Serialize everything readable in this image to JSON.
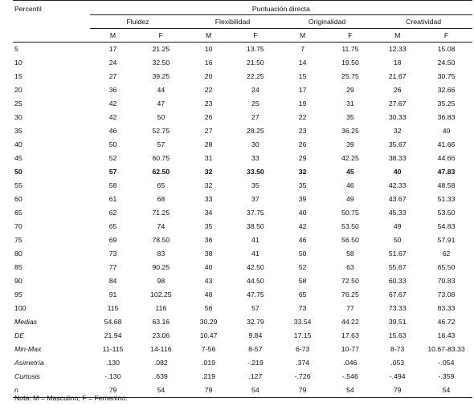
{
  "header": {
    "percentil": "Percentil",
    "puntuacion": "Puntuación directa",
    "groups": [
      "Fluidez",
      "Flexibilidad",
      "Originalidad",
      "Creatividad"
    ],
    "sub": [
      "M",
      "F",
      "M",
      "F",
      "M",
      "F",
      "M",
      "F"
    ]
  },
  "rows": [
    [
      "5",
      "17",
      "21.25",
      "10",
      "13.75",
      "7",
      "11.75",
      "12.33",
      "15.08"
    ],
    [
      "10",
      "24",
      "32.50",
      "16",
      "21.50",
      "14",
      "19.50",
      "18",
      "24.50"
    ],
    [
      "15",
      "27",
      "39.25",
      "20",
      "22.25",
      "15",
      "25.75",
      "21.67",
      "30.75"
    ],
    [
      "20",
      "36",
      "44",
      "22",
      "24",
      "17",
      "29",
      "26",
      "32.66"
    ],
    [
      "25",
      "42",
      "47",
      "23",
      "25",
      "19",
      "31",
      "27.67",
      "35.25"
    ],
    [
      "30",
      "42",
      "50",
      "26",
      "27",
      "22",
      "35",
      "30.33",
      "36.83"
    ],
    [
      "35",
      "46",
      "52.75",
      "27",
      "28.25",
      "23",
      "36.25",
      "32",
      "40"
    ],
    [
      "40",
      "50",
      "57",
      "28",
      "30",
      "26",
      "39",
      "35.67",
      "41.66"
    ],
    [
      "45",
      "52",
      "60.75",
      "31",
      "33",
      "29",
      "42.25",
      "38.33",
      "44.66"
    ],
    [
      "50",
      "57",
      "62.50",
      "32",
      "33.50",
      "32",
      "45",
      "40",
      "47.83"
    ],
    [
      "55",
      "58",
      "65",
      "32",
      "35",
      "35",
      "46",
      "42.33",
      "48.58"
    ],
    [
      "60",
      "61",
      "68",
      "33",
      "37",
      "39",
      "49",
      "43.67",
      "51.33"
    ],
    [
      "65",
      "62",
      "71.25",
      "34",
      "37.75",
      "40",
      "50.75",
      "45.33",
      "53.50"
    ],
    [
      "70",
      "65",
      "74",
      "35",
      "38.50",
      "42",
      "53.50",
      "49",
      "54.83"
    ],
    [
      "75",
      "69",
      "78.50",
      "36",
      "41",
      "46",
      "56.50",
      "50",
      "57.91"
    ],
    [
      "80",
      "73",
      "83",
      "38",
      "41",
      "50",
      "58",
      "51.67",
      "62"
    ],
    [
      "85",
      "77",
      "90.25",
      "40",
      "42.50",
      "52",
      "63",
      "55.67",
      "65.50"
    ],
    [
      "90",
      "84",
      "98",
      "43",
      "44.50",
      "58",
      "72.50",
      "60.33",
      "70.83"
    ],
    [
      "95",
      "91",
      "102.25",
      "48",
      "47.75",
      "65",
      "76.25",
      "67.67",
      "73.08"
    ],
    [
      "100",
      "115",
      "116",
      "56",
      "57",
      "73",
      "77",
      "73.33",
      "83.33"
    ],
    [
      "Medias",
      "54.68",
      "63.16",
      "30.29",
      "32.79",
      "33.54",
      "44.22",
      "39.51",
      "46.72"
    ],
    [
      "DE",
      "21.94",
      "23.06",
      "10.47",
      "9.84",
      "17.15",
      "17.63",
      "15.63",
      "16.43"
    ],
    [
      "Min-Max",
      "11-115",
      "14-116",
      "7-56",
      "8-57",
      "6-73",
      "10-77",
      "8-73",
      "10.67-83.33"
    ],
    [
      "Asimetría",
      ".130",
      ".082",
      ".019",
      "-.219",
      ".374",
      ".046",
      ".053",
      "-.054"
    ],
    [
      "Curtosis",
      "-.130",
      ".639",
      ".219",
      ".127",
      "-.726",
      "-.546",
      "-.494",
      "-.359"
    ],
    [
      "n",
      "79",
      "54",
      "79",
      "54",
      "79",
      "54",
      "79",
      "54"
    ]
  ],
  "note": "Nota: M = Masculino; F = Femenino."
}
